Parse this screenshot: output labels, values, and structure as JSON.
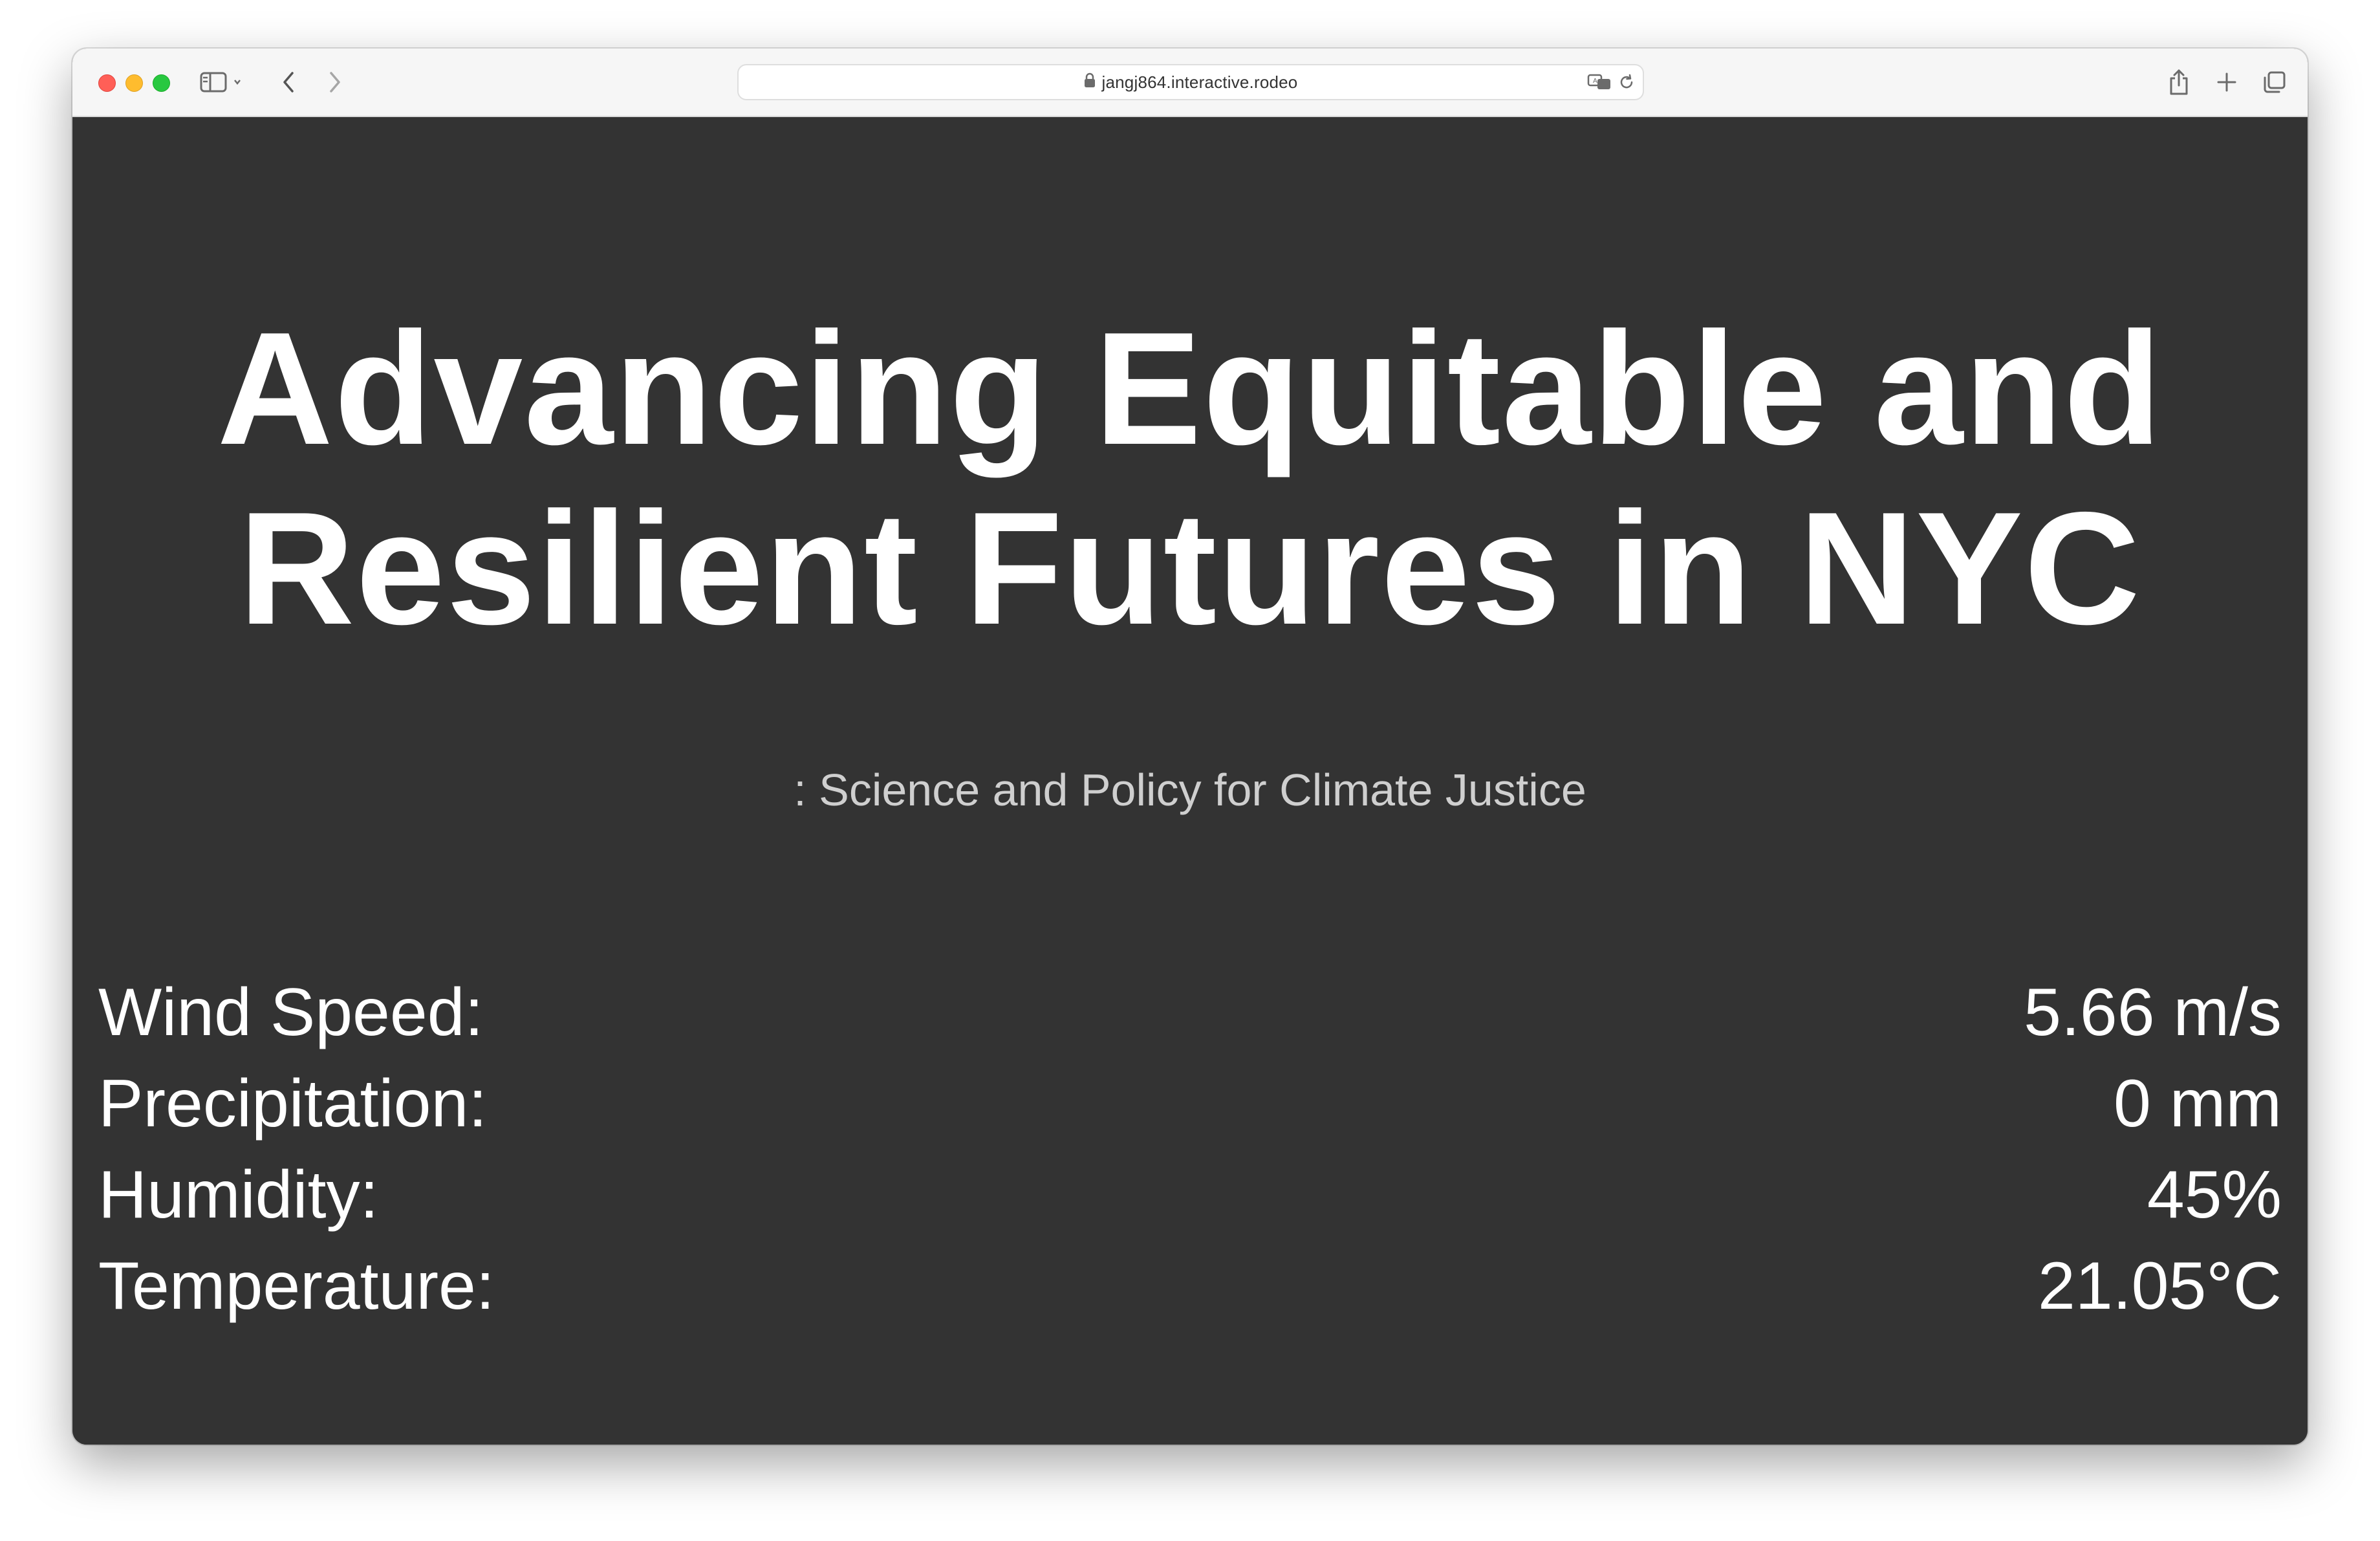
{
  "browser": {
    "url": "jangj864.interactive.rodeo",
    "icons": {
      "sidebar": "sidebar-icon",
      "back": "chevron-left-icon",
      "forward": "chevron-right-icon",
      "lock": "lock-icon",
      "translate": "translate-icon",
      "reload": "reload-icon",
      "share": "share-icon",
      "new_tab": "plus-icon",
      "tabs": "tabs-overview-icon"
    }
  },
  "page": {
    "title": "Advancing Equitable and Resilient Futures in NYC",
    "subtitle": ": Science and Policy for Climate Justice",
    "background_color": "#333333",
    "text_color": "#ffffff"
  },
  "weather": [
    {
      "label": "Wind Speed:",
      "value": "5.66 m/s"
    },
    {
      "label": "Precipitation:",
      "value": "0 mm"
    },
    {
      "label": "Humidity:",
      "value": "45%"
    },
    {
      "label": "Temperature:",
      "value": "21.05°C"
    }
  ]
}
